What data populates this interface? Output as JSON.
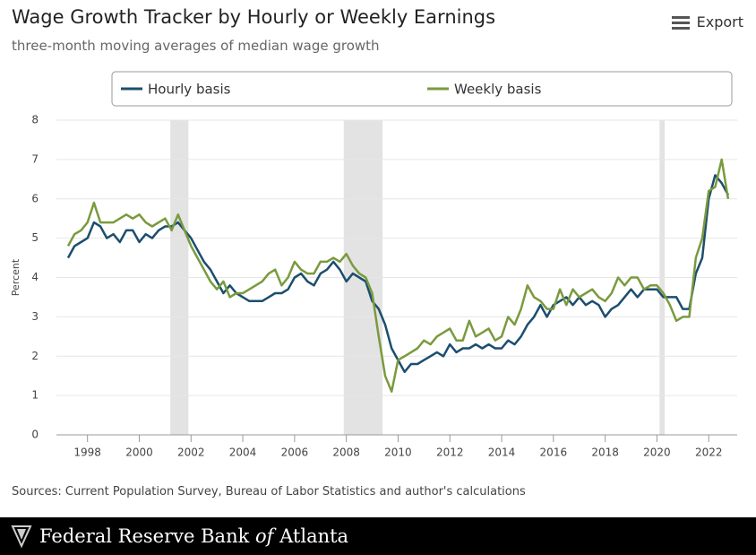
{
  "header": {
    "title": "Wage Growth Tracker by Hourly or Weekly Earnings",
    "subtitle": "three-month moving averages of median wage growth",
    "export": "Export"
  },
  "chart_data": {
    "type": "line",
    "ylabel": "Percent",
    "xlim": [
      1996.8,
      2023.1
    ],
    "xticks": [
      1998,
      2000,
      2002,
      2004,
      2006,
      2008,
      2010,
      2012,
      2014,
      2016,
      2018,
      2020,
      2022
    ],
    "ylim": [
      0,
      8
    ],
    "yticks": [
      0,
      1,
      2,
      3,
      4,
      5,
      6,
      7,
      8
    ],
    "grid": true,
    "recessions": [
      [
        2001.2,
        2001.9
      ],
      [
        2007.9,
        2009.4
      ],
      [
        2020.1,
        2020.3
      ]
    ],
    "x": [
      1997.25,
      1997.5,
      1997.75,
      1998,
      1998.25,
      1998.5,
      1998.75,
      1999,
      1999.25,
      1999.5,
      1999.75,
      2000,
      2000.25,
      2000.5,
      2000.75,
      2001,
      2001.25,
      2001.5,
      2001.75,
      2002,
      2002.25,
      2002.5,
      2002.75,
      2003,
      2003.25,
      2003.5,
      2003.75,
      2004,
      2004.25,
      2004.5,
      2004.75,
      2005,
      2005.25,
      2005.5,
      2005.75,
      2006,
      2006.25,
      2006.5,
      2006.75,
      2007,
      2007.25,
      2007.5,
      2007.75,
      2008,
      2008.25,
      2008.5,
      2008.75,
      2009,
      2009.25,
      2009.5,
      2009.75,
      2010,
      2010.25,
      2010.5,
      2010.75,
      2011,
      2011.25,
      2011.5,
      2011.75,
      2012,
      2012.25,
      2012.5,
      2012.75,
      2013,
      2013.25,
      2013.5,
      2013.75,
      2014,
      2014.25,
      2014.5,
      2014.75,
      2015,
      2015.25,
      2015.5,
      2015.75,
      2016,
      2016.25,
      2016.5,
      2016.75,
      2017,
      2017.25,
      2017.5,
      2017.75,
      2018,
      2018.25,
      2018.5,
      2018.75,
      2019,
      2019.25,
      2019.5,
      2019.75,
      2020,
      2020.25,
      2020.5,
      2020.75,
      2021,
      2021.25,
      2021.5,
      2021.75,
      2022,
      2022.25,
      2022.5,
      2022.75
    ],
    "series": [
      {
        "name": "Hourly basis",
        "color": "#1c4e6e",
        "values": [
          4.5,
          4.8,
          4.9,
          5.0,
          5.4,
          5.3,
          5.0,
          5.1,
          4.9,
          5.2,
          5.2,
          4.9,
          5.1,
          5.0,
          5.2,
          5.3,
          5.3,
          5.4,
          5.2,
          5.0,
          4.7,
          4.4,
          4.2,
          3.9,
          3.6,
          3.8,
          3.6,
          3.5,
          3.4,
          3.4,
          3.4,
          3.5,
          3.6,
          3.6,
          3.7,
          4.0,
          4.1,
          3.9,
          3.8,
          4.1,
          4.2,
          4.4,
          4.2,
          3.9,
          4.1,
          4.0,
          3.9,
          3.4,
          3.2,
          2.8,
          2.2,
          1.9,
          1.6,
          1.8,
          1.8,
          1.9,
          2.0,
          2.1,
          2.0,
          2.3,
          2.1,
          2.2,
          2.2,
          2.3,
          2.2,
          2.3,
          2.2,
          2.2,
          2.4,
          2.3,
          2.5,
          2.8,
          3.0,
          3.3,
          3.0,
          3.3,
          3.4,
          3.5,
          3.3,
          3.5,
          3.3,
          3.4,
          3.3,
          3.0,
          3.2,
          3.3,
          3.5,
          3.7,
          3.5,
          3.7,
          3.7,
          3.7,
          3.5,
          3.5,
          3.5,
          3.2,
          3.2,
          4.1,
          4.5,
          6.0,
          6.6,
          6.4,
          6.1
        ]
      },
      {
        "name": "Weekly basis",
        "color": "#7a9a3e",
        "values": [
          4.8,
          5.1,
          5.2,
          5.4,
          5.9,
          5.4,
          5.4,
          5.4,
          5.5,
          5.6,
          5.5,
          5.6,
          5.4,
          5.3,
          5.4,
          5.5,
          5.2,
          5.6,
          5.2,
          4.8,
          4.5,
          4.2,
          3.9,
          3.7,
          3.9,
          3.5,
          3.6,
          3.6,
          3.7,
          3.8,
          3.9,
          4.1,
          4.2,
          3.8,
          4.0,
          4.4,
          4.2,
          4.1,
          4.1,
          4.4,
          4.4,
          4.5,
          4.4,
          4.6,
          4.3,
          4.1,
          4.0,
          3.6,
          2.5,
          1.5,
          1.1,
          1.9,
          2.0,
          2.1,
          2.2,
          2.4,
          2.3,
          2.5,
          2.6,
          2.7,
          2.4,
          2.4,
          2.9,
          2.5,
          2.6,
          2.7,
          2.4,
          2.5,
          3.0,
          2.8,
          3.2,
          3.8,
          3.5,
          3.4,
          3.2,
          3.2,
          3.7,
          3.3,
          3.7,
          3.5,
          3.6,
          3.7,
          3.5,
          3.4,
          3.6,
          4.0,
          3.8,
          4.0,
          4.0,
          3.7,
          3.8,
          3.8,
          3.6,
          3.3,
          2.9,
          3.0,
          3.0,
          4.5,
          5.0,
          6.2,
          6.3,
          7.0,
          6.0
        ]
      }
    ]
  },
  "source": "Sources: Current Population Survey, Bureau of Labor Statistics and author's calculations",
  "footer": {
    "name_start": "Federal Reserve Bank",
    "name_of": "of",
    "name_end": "Atlanta"
  }
}
